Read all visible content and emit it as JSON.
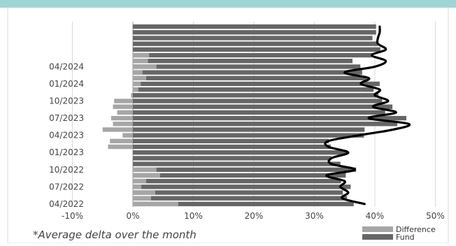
{
  "chart_data": {
    "type": "bar",
    "orientation": "horizontal",
    "stacked": false,
    "tick_labels_y": [
      "04/2022",
      "07/2022",
      "10/2022",
      "01/2023",
      "04/2023",
      "07/2023",
      "10/2023",
      "01/2024",
      "04/2024"
    ],
    "tick_labels_x": [
      "-10%",
      "0%",
      "10%",
      "20%",
      "30%",
      "40%",
      "50%"
    ],
    "xlim": [
      -10,
      50
    ],
    "grid": "vertical",
    "legend": "bottom-right",
    "footnote": "*Average delta over the month",
    "series": [
      {
        "name": "Fund",
        "color": "#666666",
        "values": [
          36.5,
          35.4,
          34.7,
          36.0,
          34.4,
          35.2,
          36.9,
          34.3,
          32.8,
          35.5,
          32.7,
          32.4,
          38.2,
          38.3,
          43.7,
          45.2,
          41.7,
          42.9,
          41.2,
          40.6,
          39.8,
          40.8,
          38.6,
          37.9,
          37.6,
          36.3,
          39.7,
          40.9,
          40.5,
          39.6,
          40.2,
          40.2
        ]
      },
      {
        "name": "Difference",
        "color": "#a6a6a6",
        "values": [
          7.5,
          3.0,
          3.7,
          1.4,
          2.2,
          4.5,
          3.9,
          0.0,
          0.0,
          0.0,
          -4.1,
          -3.8,
          -1.7,
          -5.0,
          -3.3,
          -3.6,
          -2.6,
          -3.3,
          -3.1,
          -0.3,
          0.9,
          1.3,
          2.2,
          1.6,
          3.9,
          2.5,
          2.7,
          0.0,
          0.0,
          0.0,
          0.0,
          0.0
        ]
      },
      {
        "name": "Average delta line",
        "color": "#000000",
        "values": [
          38.3,
          34.6,
          35.6,
          34.3,
          35.0,
          32.0,
          36.7,
          32.8,
          32.8,
          35.6,
          32.3,
          32.3,
          37.3,
          43.0,
          45.6,
          39.0,
          43.5,
          39.7,
          42.2,
          40.0,
          40.8,
          37.7,
          39.0,
          35.0,
          40.0,
          41.8,
          39.5,
          41.8,
          40.5,
          40.5,
          40.8,
          40.8
        ]
      }
    ]
  }
}
